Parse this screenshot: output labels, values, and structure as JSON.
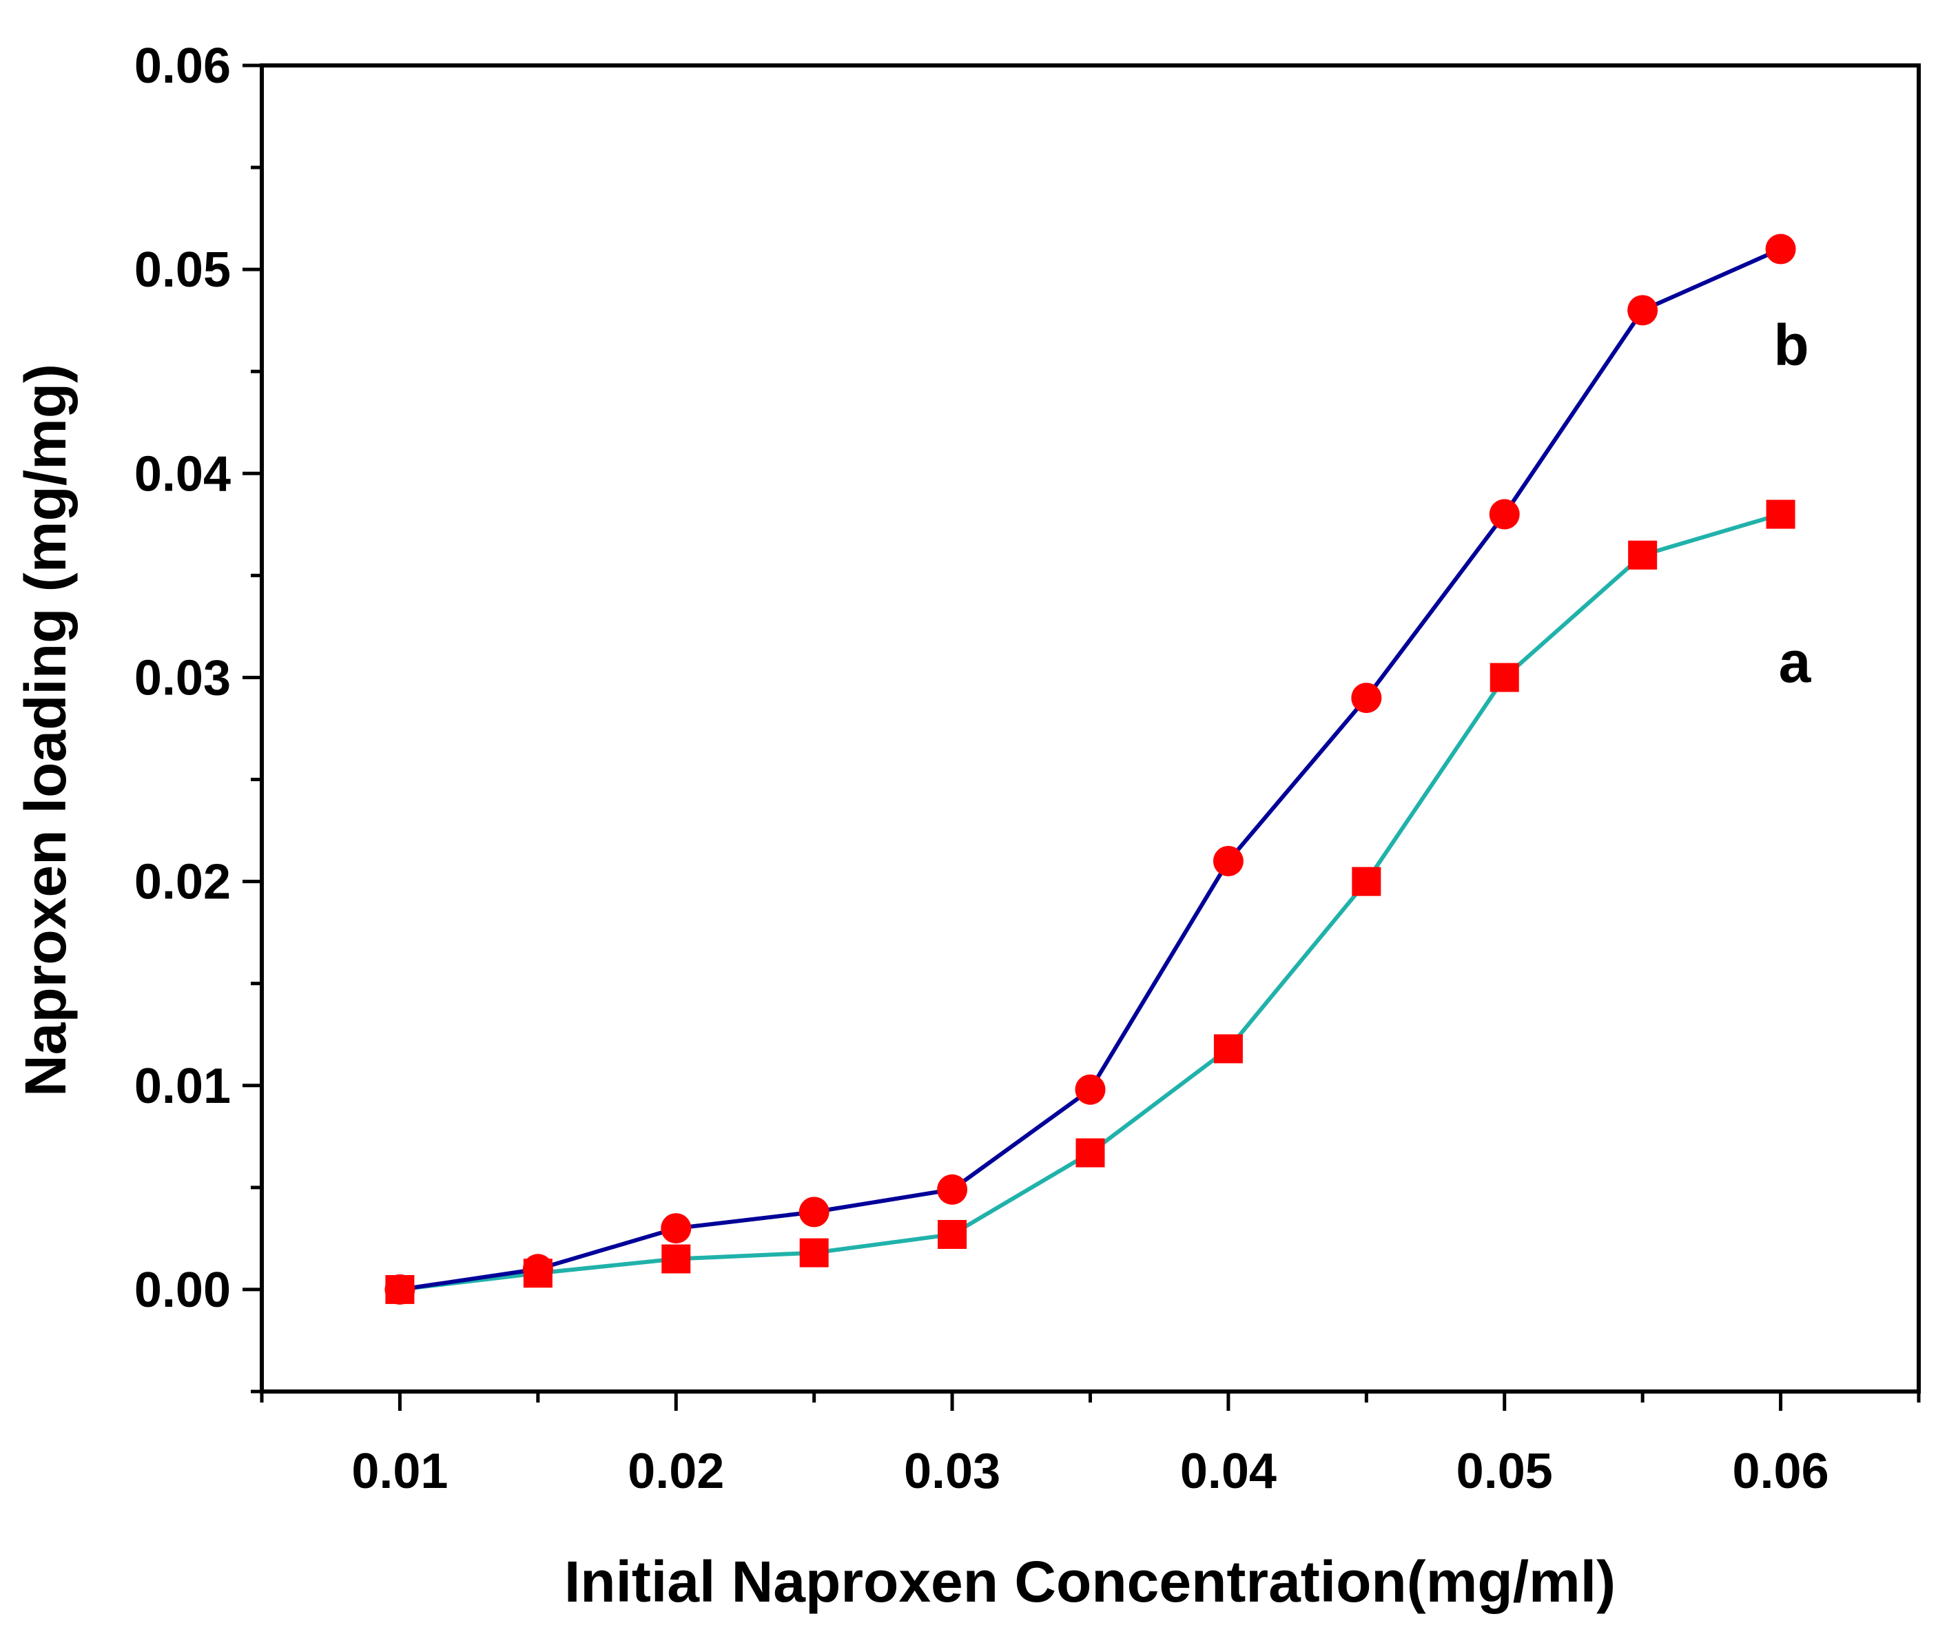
{
  "chart_data": {
    "type": "line",
    "title": "",
    "xlabel": "Initial Naproxen Concentration(mg/ml)",
    "ylabel": "Naproxen loading (mg/mg)",
    "xlim": [
      0.005,
      0.065
    ],
    "ylim": [
      -0.005,
      0.06
    ],
    "xticks": [
      "0.01",
      "0.02",
      "0.03",
      "0.04",
      "0.05",
      "0.06"
    ],
    "yticks": [
      "0.00",
      "0.01",
      "0.02",
      "0.03",
      "0.04",
      "0.05",
      "0.06"
    ],
    "grid": false,
    "x": [
      0.01,
      0.015,
      0.02,
      0.025,
      0.03,
      0.035,
      0.04,
      0.045,
      0.05,
      0.055,
      0.06
    ],
    "series": [
      {
        "name": "a",
        "line_color": "#20b2aa",
        "marker": "square",
        "marker_color": "#ff0000",
        "values": [
          0.0,
          0.0008,
          0.0015,
          0.0018,
          0.0027,
          0.0067,
          0.0118,
          0.02,
          0.03,
          0.036,
          0.038
        ]
      },
      {
        "name": "b",
        "line_color": "#000099",
        "marker": "circle",
        "marker_color": "#ff0000",
        "values": [
          0.0,
          0.001,
          0.003,
          0.0038,
          0.0049,
          0.0098,
          0.021,
          0.029,
          0.038,
          0.048,
          0.051
        ]
      }
    ]
  }
}
